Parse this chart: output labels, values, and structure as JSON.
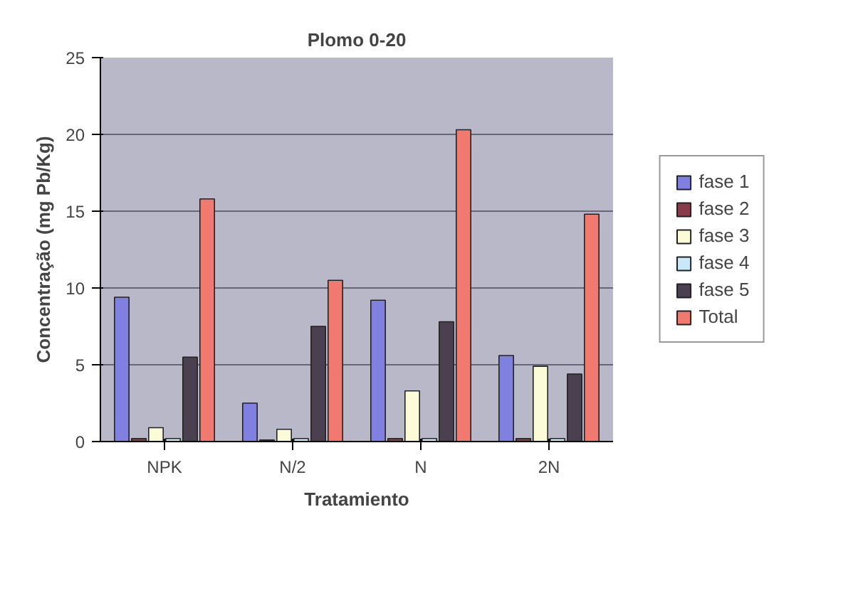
{
  "chart_data": {
    "type": "bar",
    "title": "Plomo 0-20",
    "xlabel": "Tratamiento",
    "ylabel": "Concentração (mg Pb/Kg)",
    "categories": [
      "NPK",
      "N/2",
      "N",
      "2N"
    ],
    "series": [
      {
        "name": "fase 1",
        "color": "#8080e0",
        "values": [
          9.4,
          2.5,
          9.2,
          5.6
        ]
      },
      {
        "name": "fase 2",
        "color": "#8a3a4a",
        "values": [
          0.2,
          0.1,
          0.2,
          0.2
        ]
      },
      {
        "name": "fase 3",
        "color": "#fbfbd8",
        "values": [
          0.9,
          0.8,
          3.3,
          4.9
        ]
      },
      {
        "name": "fase 4",
        "color": "#c8e8f8",
        "values": [
          0.2,
          0.2,
          0.2,
          0.2
        ]
      },
      {
        "name": "fase 5",
        "color": "#4a4050",
        "values": [
          5.5,
          7.5,
          7.8,
          4.4
        ]
      },
      {
        "name": "Total",
        "color": "#f07a70",
        "values": [
          15.8,
          10.5,
          20.3,
          14.8
        ]
      }
    ],
    "ylim": [
      0,
      25
    ],
    "yticks": [
      0,
      5,
      10,
      15,
      20,
      25
    ],
    "grid": "y",
    "legend": "right"
  }
}
